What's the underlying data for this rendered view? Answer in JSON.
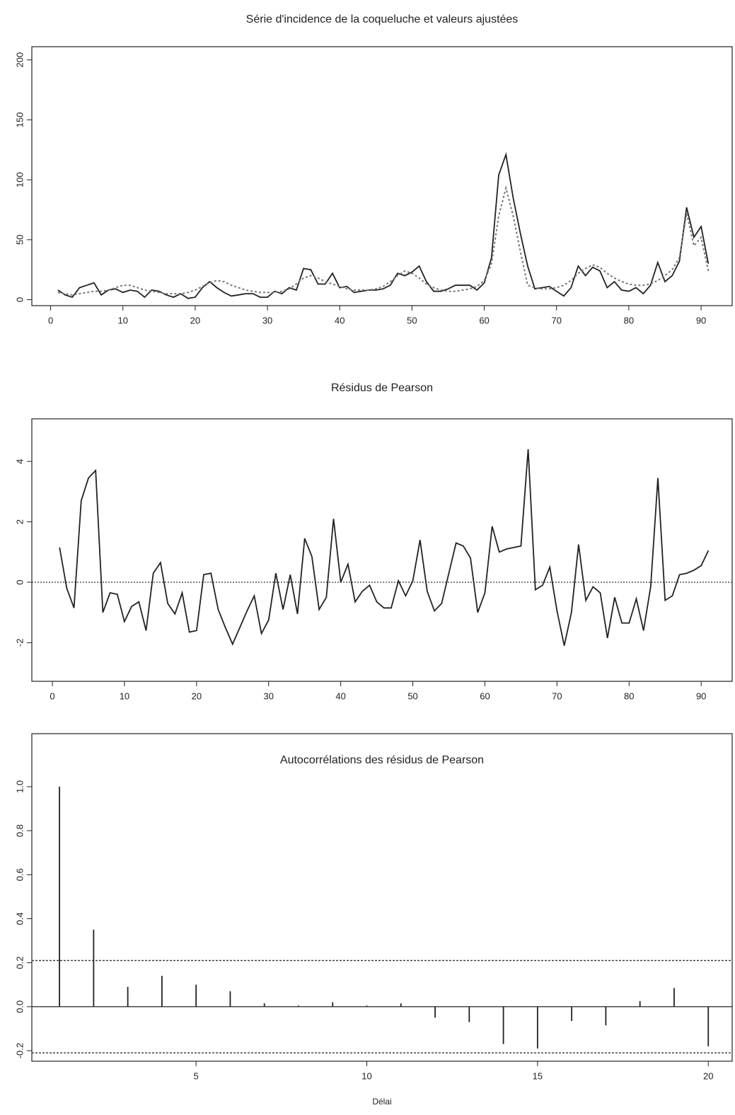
{
  "chart_data": [
    {
      "type": "line",
      "title": "Série d'incidence de la coqueluche et valeurs ajustées",
      "x": [
        1,
        2,
        3,
        4,
        5,
        6,
        7,
        8,
        9,
        10,
        11,
        12,
        13,
        14,
        15,
        16,
        17,
        18,
        19,
        20,
        21,
        22,
        23,
        24,
        25,
        26,
        27,
        28,
        29,
        30,
        31,
        32,
        33,
        34,
        35,
        36,
        37,
        38,
        39,
        40,
        41,
        42,
        43,
        44,
        45,
        46,
        47,
        48,
        49,
        50,
        51,
        52,
        53,
        54,
        55,
        56,
        57,
        58,
        59,
        60,
        61,
        62,
        63,
        64,
        65,
        66,
        67,
        68,
        69,
        70,
        71,
        72,
        73,
        74,
        75,
        76,
        77,
        78,
        79,
        80,
        81,
        82,
        83,
        84,
        85,
        86,
        87,
        88,
        89,
        90,
        91
      ],
      "series": [
        {
          "color": "#222222",
          "style": "solid",
          "values": [
            8,
            4,
            2,
            10,
            12,
            14,
            4,
            8,
            9,
            6,
            8,
            7,
            2,
            8,
            7,
            4,
            2,
            5,
            1,
            2,
            10,
            15,
            10,
            6,
            3,
            4,
            5,
            5,
            2,
            2,
            7,
            5,
            10,
            8,
            26,
            25,
            13,
            13,
            22,
            10,
            11,
            6,
            7,
            8,
            8,
            9,
            12,
            22,
            20,
            23,
            28,
            15,
            7,
            7,
            9,
            12,
            12,
            12,
            8,
            14,
            35,
            104,
            121,
            85,
            55,
            28,
            9,
            10,
            11,
            7,
            3,
            10,
            28,
            20,
            27,
            24,
            10,
            15,
            8,
            7,
            10,
            5,
            12,
            31,
            15,
            20,
            32,
            77,
            52,
            61,
            30
          ]
        },
        {
          "color": "#777777",
          "style": "dotted",
          "values": [
            6,
            5,
            4,
            5,
            6,
            7,
            7,
            8,
            10,
            12,
            12,
            10,
            8,
            7,
            6,
            5,
            5,
            5,
            6,
            8,
            11,
            14,
            16,
            15,
            12,
            10,
            8,
            7,
            6,
            6,
            6,
            7,
            9,
            13,
            18,
            20,
            18,
            15,
            13,
            11,
            9,
            8,
            8,
            8,
            9,
            11,
            15,
            20,
            24,
            22,
            18,
            13,
            10,
            8,
            7,
            7,
            8,
            9,
            11,
            16,
            30,
            70,
            93,
            70,
            40,
            12,
            10,
            9,
            9,
            10,
            12,
            16,
            22,
            26,
            29,
            27,
            22,
            18,
            15,
            13,
            12,
            12,
            13,
            16,
            20,
            25,
            35,
            72,
            45,
            52,
            24
          ]
        }
      ],
      "xlim": [
        -2.6,
        94.3
      ],
      "xticks": [
        0,
        10,
        20,
        30,
        40,
        50,
        60,
        70,
        80,
        90
      ],
      "ylim": [
        -5,
        211
      ],
      "yticks": [
        0,
        50,
        100,
        150,
        200
      ]
    },
    {
      "type": "line",
      "title": "Résidus de Pearson",
      "x": [
        1,
        2,
        3,
        4,
        5,
        6,
        7,
        8,
        9,
        10,
        11,
        12,
        13,
        14,
        15,
        16,
        17,
        18,
        19,
        20,
        21,
        22,
        23,
        24,
        25,
        26,
        27,
        28,
        29,
        30,
        31,
        32,
        33,
        34,
        35,
        36,
        37,
        38,
        39,
        40,
        41,
        42,
        43,
        44,
        45,
        46,
        47,
        48,
        49,
        50,
        51,
        52,
        53,
        54,
        55,
        56,
        57,
        58,
        59,
        60,
        61,
        62,
        63,
        64,
        65,
        66,
        67,
        68,
        69,
        70,
        71,
        72,
        73,
        74,
        75,
        76,
        77,
        78,
        79,
        80,
        81,
        82,
        83,
        84,
        85,
        86,
        87,
        88,
        89,
        90,
        91
      ],
      "series": [
        {
          "color": "#222222",
          "style": "solid",
          "values": [
            1.15,
            -0.2,
            -0.85,
            2.7,
            3.45,
            3.7,
            -1.0,
            -0.35,
            -0.4,
            -1.3,
            -0.8,
            -0.65,
            -1.6,
            0.3,
            0.65,
            -0.7,
            -1.05,
            -0.35,
            -1.65,
            -1.6,
            0.25,
            0.3,
            -0.9,
            -1.5,
            -2.05,
            -1.5,
            -0.95,
            -0.45,
            -1.7,
            -1.25,
            0.3,
            -0.9,
            0.25,
            -1.05,
            1.45,
            0.85,
            -0.9,
            -0.5,
            2.1,
            0.0,
            0.6,
            -0.65,
            -0.3,
            -0.1,
            -0.65,
            -0.85,
            -0.85,
            0.05,
            -0.45,
            0.05,
            1.4,
            -0.3,
            -0.95,
            -0.7,
            0.3,
            1.3,
            1.2,
            0.8,
            -1.0,
            -0.35,
            1.85,
            1.0,
            1.1,
            1.15,
            1.2,
            4.4,
            -0.25,
            -0.1,
            0.5,
            -0.95,
            -2.1,
            -1.0,
            1.25,
            -0.6,
            -0.15,
            -0.35,
            -1.85,
            -0.5,
            -1.35,
            -1.35,
            -0.55,
            -1.6,
            -0.15,
            3.45,
            -0.6,
            -0.45,
            0.25,
            0.3,
            0.4,
            0.55,
            1.05
          ]
        }
      ],
      "hline": 0,
      "xlim": [
        -2.85,
        94.3
      ],
      "xticks": [
        0,
        10,
        20,
        30,
        40,
        50,
        60,
        70,
        80,
        90
      ],
      "ylim": [
        -3.28,
        5.41
      ],
      "yticks": [
        -2,
        0,
        2,
        4
      ]
    },
    {
      "type": "stem",
      "title": "Autocorrélations des résidus de Pearson",
      "xlabel": "Délai",
      "x": [
        1,
        2,
        3,
        4,
        5,
        6,
        7,
        8,
        9,
        10,
        11,
        12,
        13,
        14,
        15,
        16,
        17,
        18,
        19,
        20
      ],
      "values": [
        1.0,
        0.35,
        0.09,
        0.14,
        0.1,
        0.07,
        0.015,
        0.005,
        0.02,
        0.005,
        0.015,
        -0.05,
        -0.07,
        -0.17,
        -0.19,
        -0.065,
        -0.085,
        0.025,
        0.085,
        -0.18
      ],
      "color": "#222222",
      "baseline": 0,
      "hlines": [
        0.21,
        -0.21
      ],
      "xlim": [
        0.19,
        20.7
      ],
      "xticks": [
        5,
        10,
        15,
        20
      ],
      "ylim": [
        -0.248,
        1.241
      ],
      "yticks": [
        -0.2,
        {
          "value": 0,
          "label": "0.0"
        },
        0.2,
        0.4,
        0.6,
        0.8,
        {
          "value": 1,
          "label": "1.0"
        }
      ]
    }
  ]
}
